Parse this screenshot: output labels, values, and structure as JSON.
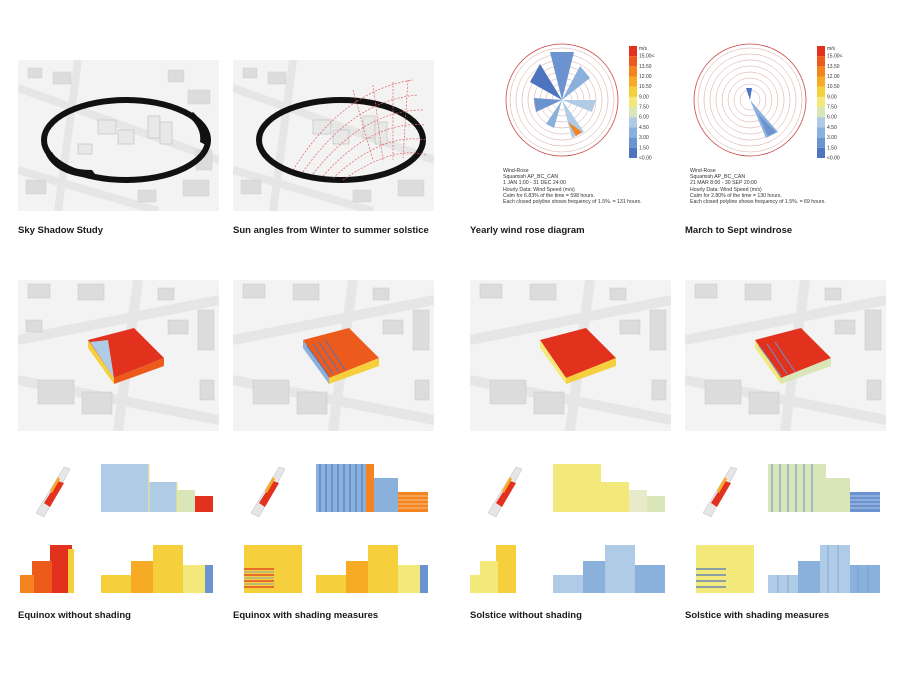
{
  "captions": {
    "sky_shadow": "Sky Shadow Study",
    "sun_angles": "Sun angles from Winter to summer solstice",
    "yearly_rose": "Yearly wind rose diagram",
    "march_sept": "March to Sept windrose",
    "equinox_no": "Equinox without shading",
    "equinox_with": "Equinox with shading measures",
    "solstice_no": "Solstice without shading",
    "solstice_with": "Solstice with shading measures"
  },
  "wind_rose_yearly": {
    "lines": [
      "Wind-Rose",
      "Squamish AP_BC_CAN",
      "1 JAN 1:00 - 31 DEC 24:00",
      "Hourly Data: Wind Speed (m/s)",
      "Calm for 6.83% of the time = 598 hours.",
      "Each closed polyline shows frequency of 1.5%. = 131 hours."
    ]
  },
  "wind_rose_march": {
    "lines": [
      "Wind-Rose",
      "Squamish AP_BC_CAN",
      "21 MAR 8:00 - 30 SEP 20:00",
      "Hourly Data: Wind Speed (m/s)",
      "Calm for 2.80% of the time = 130 hours.",
      "Each closed polyline shows frequency of 1.5%. = 69 hours."
    ]
  },
  "legend": {
    "unit": "m/s",
    "labels": [
      "15.00<",
      "13.50",
      "12.00",
      "10.50",
      "9.00",
      "7.50",
      "6.00",
      "4.50",
      "3.00",
      "1.50",
      "<0.00"
    ],
    "colors": [
      "#e2321e",
      "#ec5a1c",
      "#f3841e",
      "#f7aa26",
      "#f5cf3c",
      "#f2e97a",
      "#d8e6b8",
      "#b0cbe6",
      "#8ab0dc",
      "#6b93cf",
      "#4d74bf"
    ]
  }
}
